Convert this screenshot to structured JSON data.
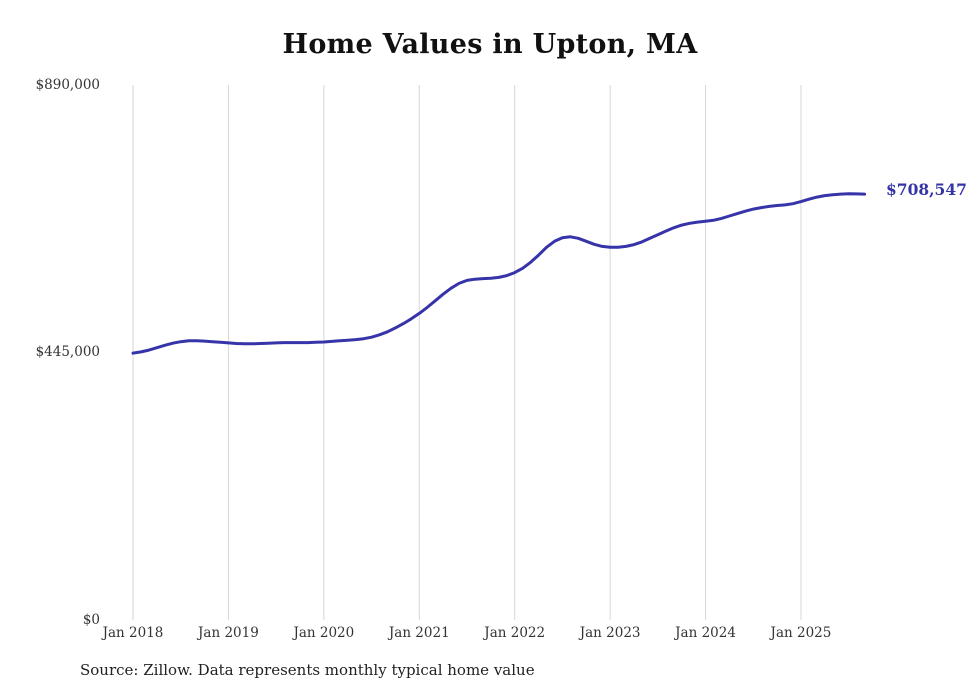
{
  "chart_data": {
    "type": "line",
    "title": "Home Values in Upton, MA",
    "series_name": "Typical home value",
    "frequency": "monthly",
    "x_start": "Jan 2018",
    "x_end": "Sep 2025",
    "x_tick_labels": [
      "Jan 2018",
      "Jan 2019",
      "Jan 2020",
      "Jan 2021",
      "Jan 2022",
      "Jan 2023",
      "Jan 2024",
      "Jan 2025"
    ],
    "y_tick_labels": [
      "$0",
      "$445,000",
      "$890,000"
    ],
    "ylim": [
      0,
      890000
    ],
    "grid": "vertical-only",
    "grid_color": "#d6d6d6",
    "line_color": "#3634a8",
    "end_label": "$708,547",
    "end_value": 708547,
    "values": [
      444000,
      446000,
      449000,
      453000,
      457000,
      460500,
      463000,
      464500,
      464500,
      464000,
      463000,
      462000,
      461000,
      460000,
      459500,
      459500,
      460000,
      460500,
      461000,
      461500,
      461500,
      461500,
      461500,
      462000,
      462500,
      463500,
      464500,
      465500,
      466500,
      468000,
      470500,
      474500,
      479500,
      486000,
      493000,
      501000,
      510000,
      520000,
      531000,
      542000,
      552000,
      560000,
      565000,
      567000,
      568000,
      568500,
      570000,
      573000,
      578000,
      585000,
      595000,
      607000,
      620000,
      630000,
      636000,
      637500,
      635000,
      630000,
      625000,
      621500,
      620000,
      620000,
      621500,
      624500,
      629000,
      635000,
      641000,
      647000,
      652500,
      657000,
      660000,
      662000,
      663500,
      665000,
      668000,
      672000,
      676000,
      680000,
      683500,
      686000,
      688000,
      689500,
      690500,
      692500,
      696000,
      700000,
      703500,
      706000,
      707500,
      708500,
      709000,
      708800,
      708547
    ]
  },
  "footer": {
    "source_text": "Source: Zillow. Data represents monthly typical home value"
  }
}
